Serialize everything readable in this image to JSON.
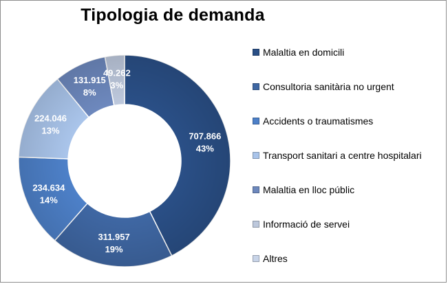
{
  "chart_data": {
    "type": "pie",
    "style": "doughnut",
    "title": "Tipologia de demanda",
    "legend_position": "right",
    "categories": [
      "Malaltia en domicili",
      "Consultoria sanitària no urgent",
      "Accidents o traumatismes",
      "Transport sanitari a centre hospitalari",
      "Malaltia en lloc públic",
      "Informació de servei",
      "Altres"
    ],
    "values": [
      707866,
      311957,
      234634,
      224046,
      131915,
      49262,
      0
    ],
    "value_labels": [
      "707.866",
      "311.957",
      "234.634",
      "224.046",
      "131.915",
      "49.262",
      null
    ],
    "percent_labels": [
      "43%",
      "19%",
      "14%",
      "13%",
      "8%",
      "3%",
      null
    ],
    "colors": [
      "#2a4f86",
      "#3f67a3",
      "#4d80c8",
      "#a9c4ea",
      "#6d88bd",
      "#bdc8dc",
      "#c8d4e8"
    ]
  }
}
